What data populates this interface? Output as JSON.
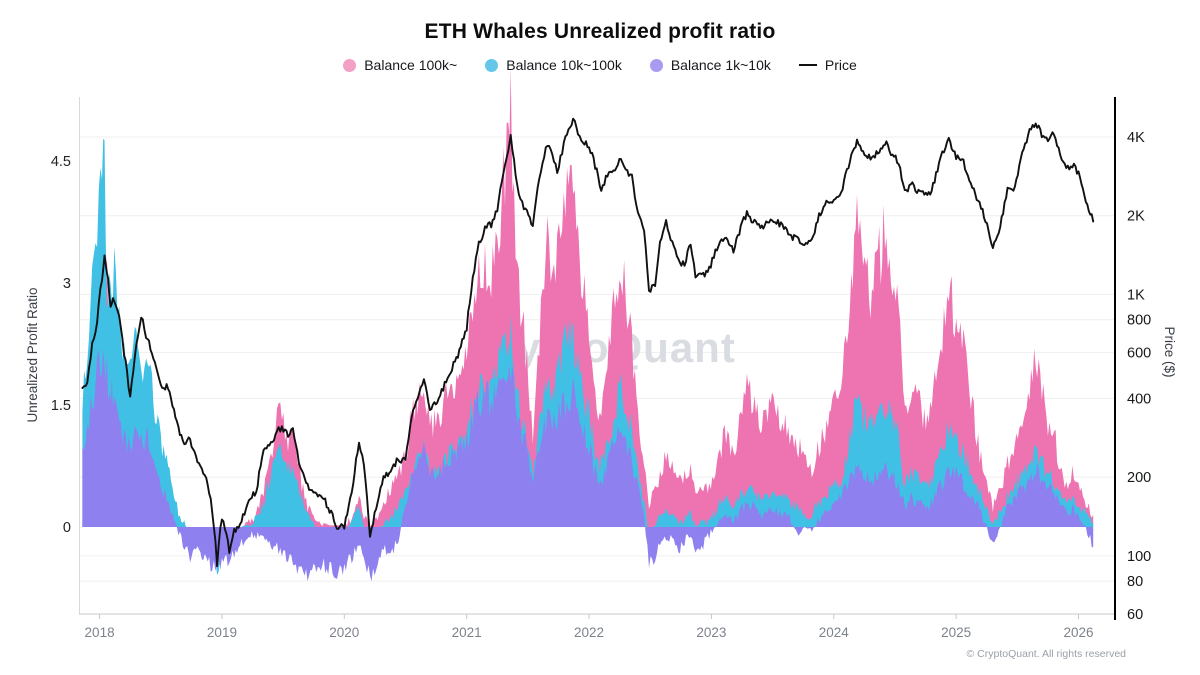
{
  "footer": {
    "copyright": "© CryptoQuant. All rights reserved"
  },
  "watermark": "CryptoQuant",
  "chart_data": {
    "type": "area+line",
    "title": "ETH Whales Unrealized profit ratio",
    "left_axis": {
      "label": "Unrealized Profit Ratio",
      "ticks": [
        0,
        1.5,
        3,
        4.5
      ],
      "range": [
        -1.07,
        5.29
      ]
    },
    "right_axis": {
      "label": "Price ($)",
      "scale": "log",
      "tick_labels": [
        "4K",
        "2K",
        "1K",
        "800",
        "600",
        "400",
        "200",
        "100",
        "80",
        "60"
      ],
      "tick_values": [
        4000,
        2000,
        1000,
        800,
        600,
        400,
        200,
        100,
        80,
        60
      ],
      "range": [
        60,
        5650
      ]
    },
    "x_axis": {
      "ticks": [
        2018,
        2019,
        2020,
        2021,
        2022,
        2023,
        2024,
        2025,
        2026
      ],
      "range": [
        2017.84,
        2026.29
      ]
    },
    "grid": "horizontal-price-levels",
    "legend": [
      {
        "label": "Balance 100k~",
        "marker": "dot",
        "color": "#f2a0c5"
      },
      {
        "label": "Balance 10k~100k",
        "marker": "dot",
        "color": "#64c7ea"
      },
      {
        "label": "Balance 1k~10k",
        "marker": "dot",
        "color": "#a89bf2"
      },
      {
        "label": "Price",
        "marker": "line",
        "color": "#111111"
      }
    ],
    "x": [
      2017.86,
      2017.9,
      2017.94,
      2017.98,
      2018.02,
      2018.04,
      2018.06,
      2018.09,
      2018.12,
      2018.16,
      2018.2,
      2018.25,
      2018.3,
      2018.34,
      2018.38,
      2018.44,
      2018.5,
      2018.56,
      2018.62,
      2018.68,
      2018.74,
      2018.8,
      2018.86,
      2018.92,
      2018.96,
      2019.0,
      2019.06,
      2019.1,
      2019.16,
      2019.22,
      2019.28,
      2019.34,
      2019.4,
      2019.45,
      2019.49,
      2019.54,
      2019.58,
      2019.64,
      2019.7,
      2019.76,
      2019.82,
      2019.88,
      2019.94,
      2020.0,
      2020.06,
      2020.12,
      2020.16,
      2020.21,
      2020.26,
      2020.32,
      2020.38,
      2020.44,
      2020.5,
      2020.55,
      2020.6,
      2020.65,
      2020.7,
      2020.76,
      2020.82,
      2020.88,
      2020.94,
      2021.0,
      2021.05,
      2021.1,
      2021.15,
      2021.2,
      2021.25,
      2021.3,
      2021.34,
      2021.36,
      2021.4,
      2021.44,
      2021.48,
      2021.54,
      2021.58,
      2021.62,
      2021.66,
      2021.7,
      2021.74,
      2021.78,
      2021.82,
      2021.87,
      2021.91,
      2021.95,
      2022.0,
      2022.05,
      2022.1,
      2022.15,
      2022.2,
      2022.26,
      2022.3,
      2022.35,
      2022.4,
      2022.45,
      2022.49,
      2022.54,
      2022.58,
      2022.63,
      2022.68,
      2022.73,
      2022.78,
      2022.83,
      2022.87,
      2022.92,
      2022.97,
      2023.02,
      2023.07,
      2023.12,
      2023.18,
      2023.24,
      2023.29,
      2023.34,
      2023.4,
      2023.46,
      2023.52,
      2023.58,
      2023.64,
      2023.7,
      2023.76,
      2023.82,
      2023.88,
      2023.94,
      2024.0,
      2024.06,
      2024.12,
      2024.19,
      2024.24,
      2024.3,
      2024.36,
      2024.43,
      2024.48,
      2024.53,
      2024.58,
      2024.63,
      2024.68,
      2024.74,
      2024.8,
      2024.86,
      2024.9,
      2024.94,
      2025.0,
      2025.06,
      2025.12,
      2025.18,
      2025.24,
      2025.3,
      2025.36,
      2025.42,
      2025.48,
      2025.54,
      2025.6,
      2025.65,
      2025.7,
      2025.75,
      2025.8,
      2025.85,
      2025.9,
      2025.95,
      2026.0,
      2026.06,
      2026.12
    ],
    "series": [
      {
        "name": "Balance 100k~",
        "color": "#ee73b1",
        "values": [
          0.1,
          0.15,
          0.2,
          0.35,
          0.6,
          1.2,
          3.4,
          1.5,
          0.9,
          0.6,
          0.4,
          0.3,
          1.2,
          1.9,
          1.3,
          0.55,
          0.3,
          0.15,
          0.05,
          0.0,
          0.0,
          0.0,
          0.0,
          0.0,
          0.0,
          0.0,
          0.0,
          0.0,
          0.0,
          0.05,
          0.15,
          0.45,
          0.9,
          1.3,
          1.45,
          1.0,
          1.1,
          0.6,
          0.25,
          0.1,
          0.05,
          0.02,
          0.02,
          0.02,
          0.1,
          0.35,
          0.15,
          0.0,
          0.1,
          0.3,
          0.45,
          0.6,
          0.85,
          1.4,
          1.55,
          1.75,
          1.2,
          1.35,
          1.55,
          1.7,
          1.85,
          2.1,
          2.7,
          3.1,
          3.3,
          3.0,
          3.4,
          4.2,
          4.7,
          5.05,
          3.6,
          2.7,
          2.2,
          1.05,
          1.9,
          2.9,
          3.5,
          3.1,
          3.4,
          3.8,
          4.05,
          4.25,
          3.6,
          2.9,
          2.6,
          1.6,
          1.4,
          2.0,
          2.6,
          3.3,
          2.9,
          2.2,
          1.3,
          0.7,
          0.3,
          0.45,
          0.6,
          0.9,
          0.7,
          0.55,
          0.6,
          0.7,
          0.45,
          0.5,
          0.45,
          0.65,
          0.95,
          1.15,
          0.95,
          1.3,
          1.75,
          1.55,
          1.3,
          1.45,
          1.5,
          1.3,
          1.1,
          1.05,
          0.8,
          0.7,
          1.0,
          1.25,
          1.5,
          1.7,
          2.6,
          3.9,
          3.3,
          2.9,
          3.2,
          3.75,
          3.1,
          2.6,
          1.4,
          1.7,
          1.55,
          1.35,
          1.5,
          2.0,
          2.5,
          2.9,
          2.55,
          2.2,
          1.6,
          1.0,
          0.55,
          0.25,
          0.45,
          0.8,
          1.0,
          1.3,
          1.75,
          2.05,
          1.7,
          1.3,
          1.15,
          0.75,
          0.5,
          0.68,
          0.5,
          0.3,
          0.15
        ]
      },
      {
        "name": "Balance 10k~100k",
        "color": "#3fc0e4",
        "values": [
          1.6,
          2.3,
          2.9,
          3.8,
          4.65,
          4.3,
          3.1,
          3.0,
          3.3,
          2.6,
          2.2,
          1.95,
          2.5,
          1.75,
          2.3,
          1.6,
          1.1,
          0.7,
          0.3,
          0.05,
          -0.05,
          -0.05,
          -0.1,
          -0.15,
          -0.65,
          -0.1,
          -0.1,
          -0.05,
          0.0,
          0.05,
          0.1,
          0.3,
          0.6,
          0.85,
          0.95,
          0.7,
          0.75,
          0.4,
          0.15,
          0.0,
          -0.05,
          -0.1,
          -0.1,
          -0.05,
          0.05,
          0.25,
          0.05,
          -0.2,
          -0.1,
          0.05,
          0.1,
          0.25,
          0.45,
          0.7,
          0.8,
          0.95,
          0.65,
          0.7,
          0.8,
          0.9,
          1.0,
          1.15,
          1.5,
          1.75,
          1.85,
          1.7,
          1.95,
          2.2,
          2.3,
          2.35,
          1.8,
          1.4,
          1.15,
          0.6,
          1.05,
          1.55,
          1.9,
          1.7,
          1.85,
          2.1,
          2.3,
          2.4,
          2.0,
          1.6,
          1.4,
          0.85,
          0.75,
          1.05,
          1.35,
          1.7,
          1.5,
          1.15,
          0.65,
          0.3,
          -0.1,
          0.05,
          0.15,
          0.25,
          0.15,
          0.05,
          0.1,
          0.15,
          0.0,
          0.05,
          0.05,
          0.15,
          0.3,
          0.35,
          0.25,
          0.4,
          0.5,
          0.45,
          0.35,
          0.4,
          0.4,
          0.35,
          0.3,
          0.25,
          0.15,
          0.15,
          0.3,
          0.4,
          0.5,
          0.6,
          1.0,
          1.6,
          1.35,
          1.2,
          1.35,
          1.55,
          1.25,
          1.05,
          0.5,
          0.65,
          0.6,
          0.5,
          0.6,
          0.85,
          1.05,
          1.2,
          1.05,
          0.9,
          0.7,
          0.45,
          0.25,
          0.05,
          0.2,
          0.4,
          0.5,
          0.65,
          0.85,
          0.95,
          0.8,
          0.65,
          0.6,
          0.42,
          0.3,
          0.38,
          0.28,
          0.15,
          0.05
        ]
      },
      {
        "name": "Balance 1k~10k",
        "color": "#8e80ee",
        "values": [
          0.95,
          1.3,
          1.55,
          1.85,
          2.1,
          2.0,
          1.9,
          1.55,
          1.7,
          1.35,
          1.1,
          1.0,
          1.3,
          1.0,
          1.15,
          0.8,
          0.55,
          0.3,
          0.05,
          -0.2,
          -0.35,
          -0.3,
          -0.4,
          -0.5,
          -0.52,
          -0.45,
          -0.4,
          -0.3,
          -0.2,
          -0.1,
          -0.1,
          -0.15,
          -0.2,
          -0.25,
          -0.3,
          -0.4,
          -0.45,
          -0.55,
          -0.6,
          -0.55,
          -0.45,
          -0.5,
          -0.55,
          -0.5,
          -0.4,
          -0.2,
          -0.35,
          -0.65,
          -0.45,
          -0.25,
          -0.35,
          -0.15,
          0.25,
          0.6,
          0.75,
          0.9,
          0.6,
          0.65,
          0.75,
          0.85,
          0.95,
          1.05,
          1.35,
          1.55,
          1.65,
          1.5,
          1.7,
          1.85,
          1.95,
          1.95,
          1.55,
          1.2,
          1.0,
          0.5,
          0.85,
          1.2,
          1.4,
          1.25,
          1.35,
          1.5,
          1.6,
          1.65,
          1.4,
          1.15,
          1.0,
          0.65,
          0.55,
          0.8,
          1.0,
          1.2,
          1.05,
          0.8,
          0.45,
          0.15,
          -0.45,
          -0.38,
          -0.22,
          -0.12,
          -0.18,
          -0.28,
          -0.18,
          -0.12,
          -0.35,
          -0.25,
          -0.12,
          -0.02,
          0.1,
          0.15,
          0.05,
          0.2,
          0.3,
          0.25,
          0.15,
          0.2,
          0.2,
          0.15,
          0.1,
          -0.08,
          0.0,
          -0.05,
          0.1,
          0.2,
          0.3,
          0.35,
          0.55,
          0.8,
          0.65,
          0.55,
          0.65,
          0.75,
          0.6,
          0.5,
          0.25,
          0.35,
          0.3,
          0.25,
          0.3,
          0.45,
          0.6,
          0.75,
          0.65,
          0.55,
          0.4,
          0.25,
          0.05,
          -0.22,
          0.0,
          0.25,
          0.35,
          0.45,
          0.6,
          0.72,
          0.6,
          0.48,
          0.42,
          0.28,
          0.17,
          0.22,
          0.12,
          0.0,
          -0.25
        ]
      }
    ],
    "price": {
      "name": "Price",
      "color": "#111111",
      "values": [
        430,
        470,
        640,
        780,
        1150,
        1390,
        1230,
        900,
        960,
        830,
        600,
        400,
        640,
        820,
        700,
        570,
        450,
        440,
        340,
        270,
        280,
        225,
        205,
        150,
        92,
        140,
        105,
        125,
        135,
        165,
        175,
        250,
        270,
        300,
        310,
        290,
        300,
        215,
        185,
        170,
        170,
        150,
        130,
        130,
        170,
        270,
        225,
        115,
        155,
        200,
        210,
        235,
        230,
        340,
        400,
        465,
        355,
        390,
        450,
        520,
        600,
        740,
        1150,
        1550,
        1800,
        1850,
        2100,
        2900,
        3600,
        4050,
        2800,
        2300,
        2100,
        1800,
        2500,
        3200,
        3800,
        3400,
        2950,
        3500,
        4200,
        4700,
        4100,
        3800,
        3700,
        3100,
        2500,
        2900,
        2900,
        3300,
        3000,
        2800,
        2000,
        1750,
        1020,
        1100,
        1550,
        1900,
        1550,
        1350,
        1300,
        1550,
        1150,
        1200,
        1200,
        1400,
        1600,
        1650,
        1450,
        1800,
        2050,
        1900,
        1800,
        1900,
        1900,
        1850,
        1650,
        1650,
        1550,
        1600,
        2000,
        2250,
        2300,
        2400,
        3100,
        3900,
        3500,
        3300,
        3500,
        3800,
        3400,
        3200,
        2450,
        2650,
        2500,
        2400,
        2500,
        3100,
        3600,
        3950,
        3350,
        3200,
        2700,
        2250,
        1950,
        1500,
        1800,
        2500,
        2550,
        3400,
        4250,
        4550,
        4100,
        3900,
        4100,
        3400,
        3000,
        3150,
        2900,
        2300,
        1900
      ]
    }
  }
}
